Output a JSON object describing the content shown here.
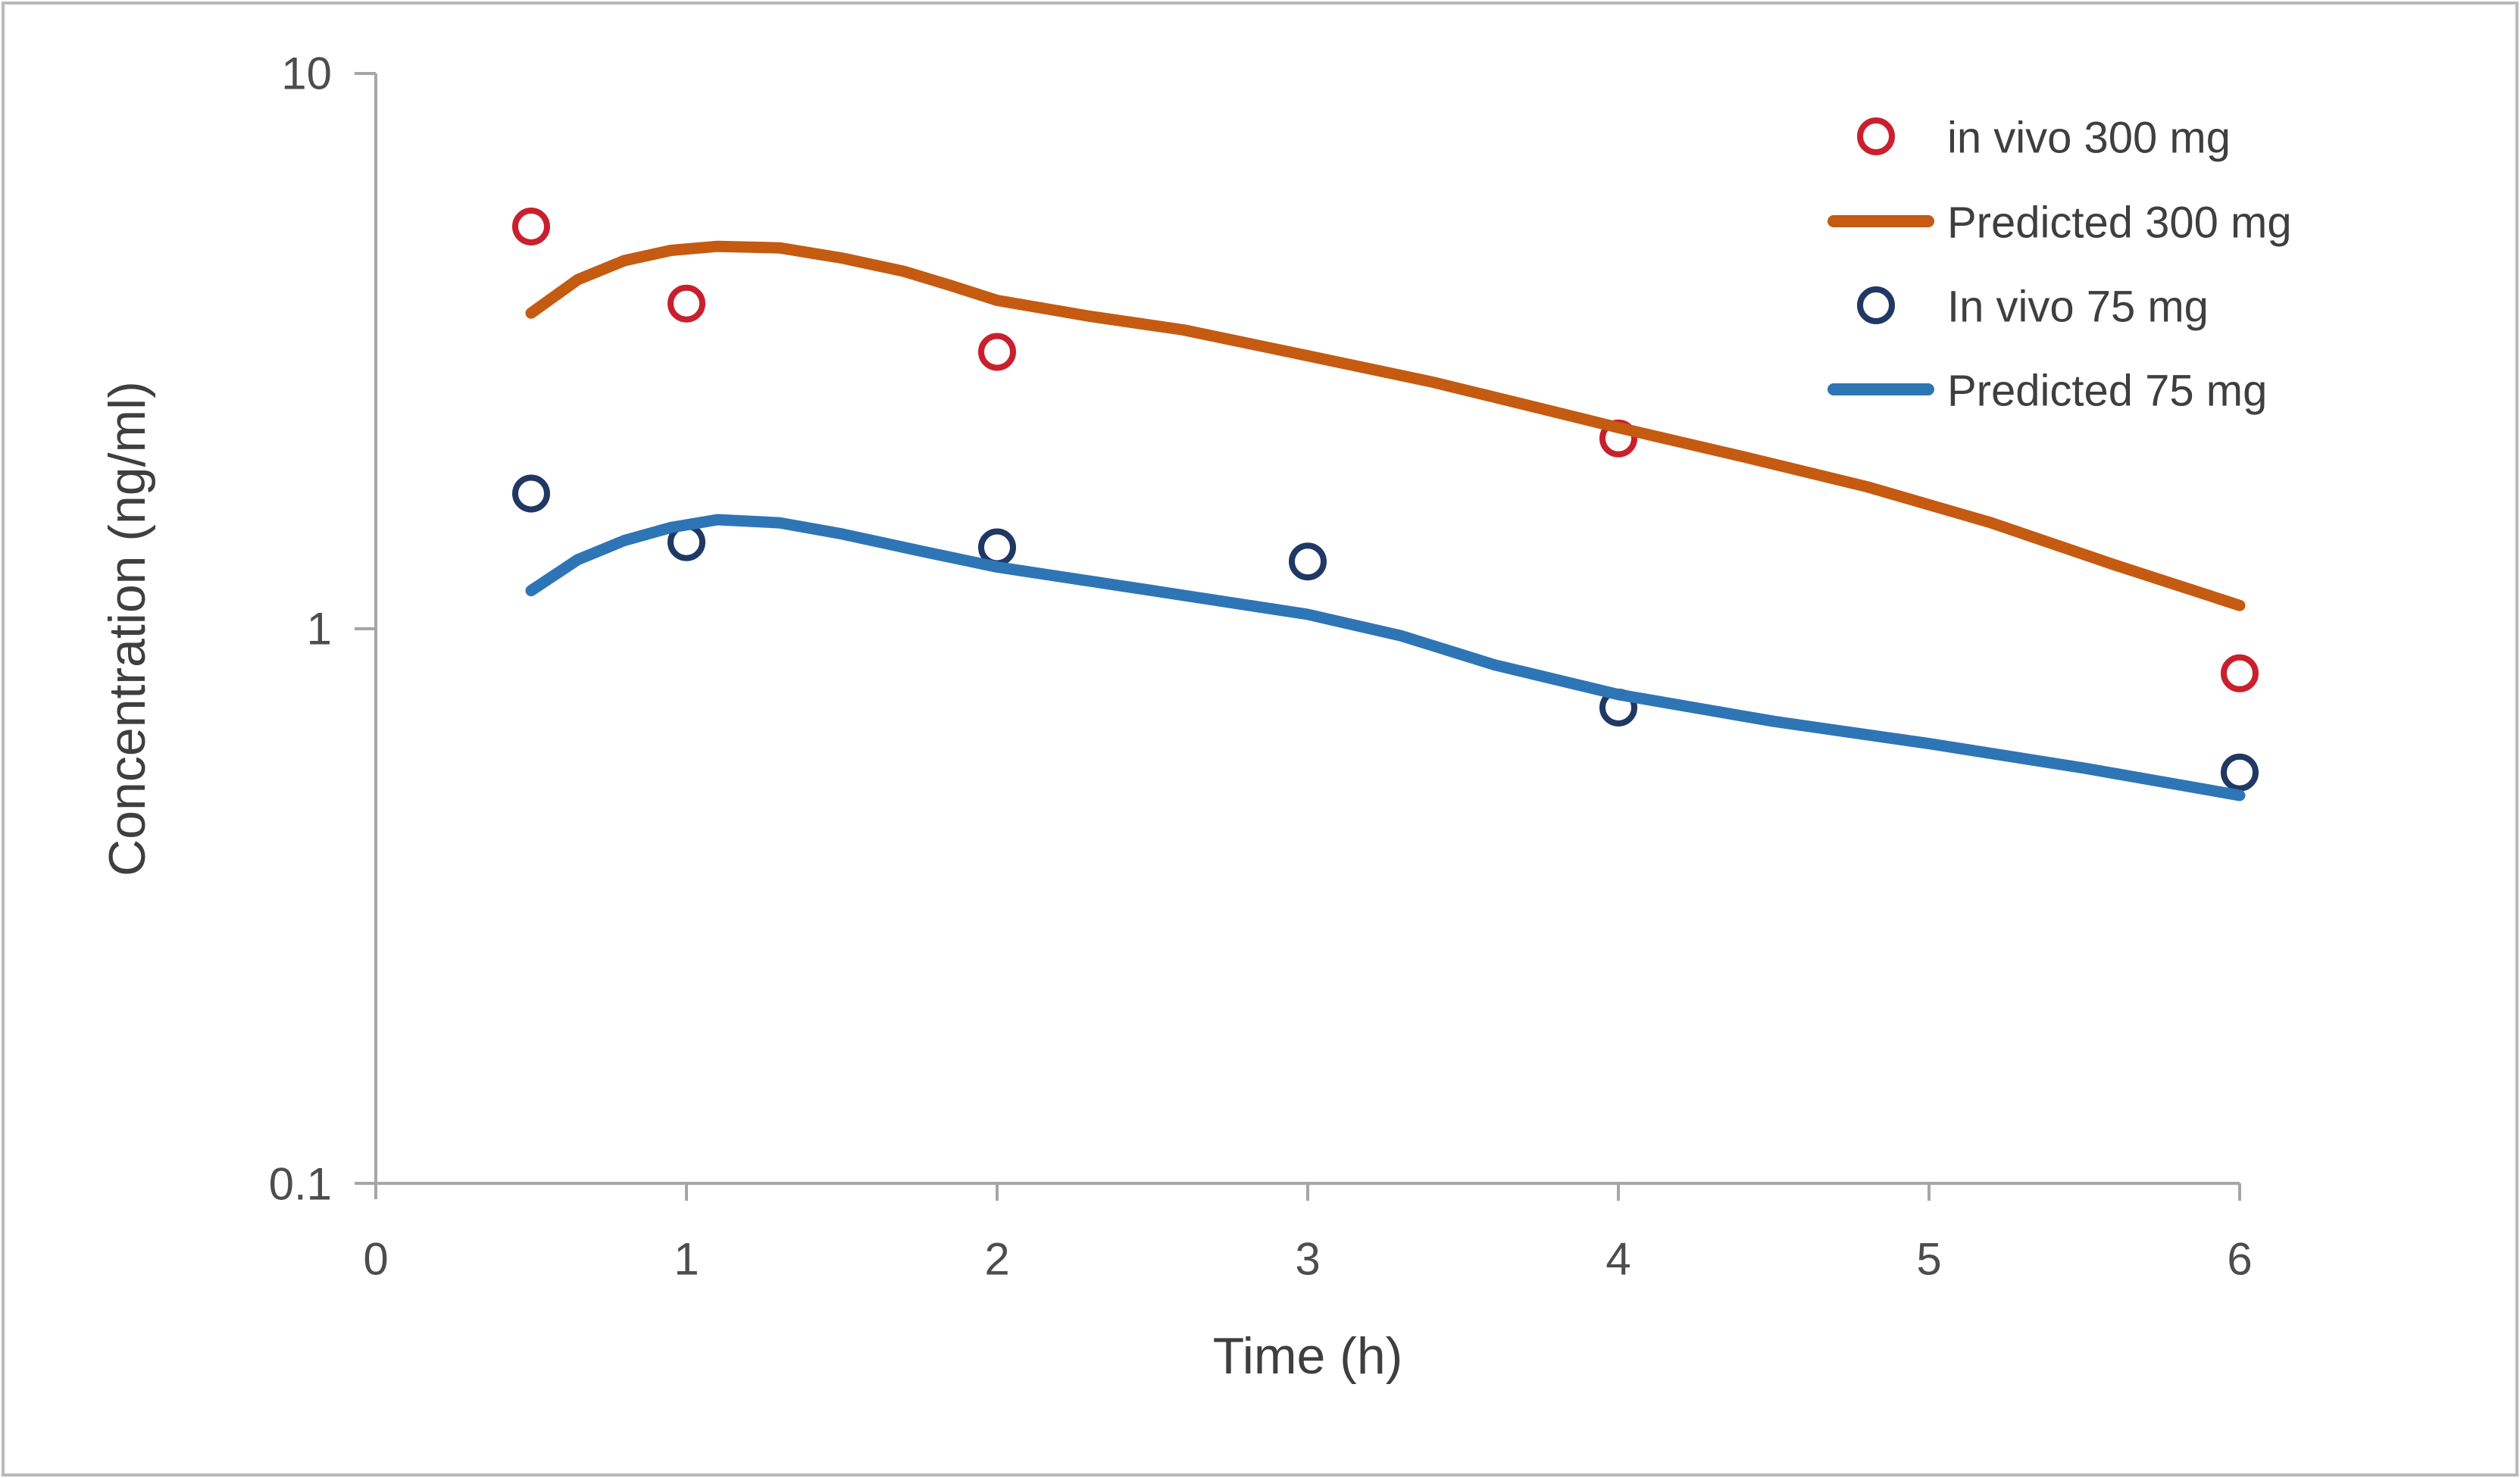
{
  "figure": {
    "background": "#ffffff",
    "border_color": "#b9b9b9",
    "axis_line_color": "#a6a6a6",
    "text_color": "#3f3f3f"
  },
  "axes": {
    "x": {
      "label": "Time (h)",
      "ticks": [
        "0",
        "1",
        "2",
        "3",
        "4",
        "5",
        "6"
      ],
      "tick_values": [
        0,
        1,
        2,
        3,
        4,
        5,
        6
      ],
      "range": [
        0,
        6
      ],
      "scale": "linear"
    },
    "y": {
      "label": "Concentration (ng/ml)",
      "ticks": [
        "10",
        "1",
        "0.1"
      ],
      "tick_values": [
        10,
        1,
        0.1
      ],
      "range": [
        0.1,
        10
      ],
      "scale": "log"
    }
  },
  "legend": {
    "position": "upper right",
    "items": [
      {
        "label": "in vivo 300 mg",
        "marker": "open-circle",
        "color": "#c9202e"
      },
      {
        "label": "Predicted 300 mg",
        "marker": "line",
        "color": "#c55a11"
      },
      {
        "label": "In vivo 75 mg",
        "marker": "open-circle",
        "color": "#1f3864"
      },
      {
        "label": "Predicted 75 mg",
        "marker": "line",
        "color": "#2e75b6"
      }
    ]
  },
  "chart_data": {
    "type": "scatter",
    "title": "",
    "xlabel": "Time (h)",
    "ylabel": "Concentration (ng/ml)",
    "x_range": [
      0,
      6
    ],
    "y_range": [
      0.1,
      10
    ],
    "y_scale": "log",
    "grid": false,
    "legend_position": "upper right",
    "series": [
      {
        "name": "in vivo 300 mg",
        "kind": "scatter",
        "marker": "open-circle",
        "color": "#c9202e",
        "points": [
          [
            0.5,
            5.3
          ],
          [
            1,
            3.85
          ],
          [
            2,
            3.15
          ],
          [
            4,
            2.2
          ],
          [
            6,
            0.83
          ]
        ]
      },
      {
        "name": "Predicted 300 mg",
        "kind": "line",
        "color": "#c55a11",
        "points": [
          [
            0.5,
            3.7
          ],
          [
            0.65,
            4.25
          ],
          [
            0.8,
            4.6
          ],
          [
            0.95,
            4.8
          ],
          [
            1.1,
            4.88
          ],
          [
            1.3,
            4.85
          ],
          [
            1.5,
            4.65
          ],
          [
            1.7,
            4.4
          ],
          [
            1.85,
            4.15
          ],
          [
            2.0,
            3.9
          ],
          [
            2.3,
            3.65
          ],
          [
            2.6,
            3.45
          ],
          [
            3.0,
            3.1
          ],
          [
            3.4,
            2.78
          ],
          [
            3.7,
            2.53
          ],
          [
            4.0,
            2.3
          ],
          [
            4.4,
            2.04
          ],
          [
            4.8,
            1.8
          ],
          [
            5.2,
            1.55
          ],
          [
            5.6,
            1.3
          ],
          [
            6.0,
            1.1
          ]
        ]
      },
      {
        "name": "In vivo 75 mg",
        "kind": "scatter",
        "marker": "open-circle",
        "color": "#1f3864",
        "points": [
          [
            0.5,
            1.75
          ],
          [
            1,
            1.43
          ],
          [
            2,
            1.4
          ],
          [
            3,
            1.32
          ],
          [
            4,
            0.72
          ],
          [
            6,
            0.55
          ]
        ]
      },
      {
        "name": "Predicted 75 mg",
        "kind": "line",
        "color": "#2e75b6",
        "points": [
          [
            0.5,
            1.17
          ],
          [
            0.65,
            1.33
          ],
          [
            0.8,
            1.44
          ],
          [
            0.95,
            1.52
          ],
          [
            1.1,
            1.57
          ],
          [
            1.3,
            1.55
          ],
          [
            1.5,
            1.48
          ],
          [
            1.75,
            1.38
          ],
          [
            2.0,
            1.29
          ],
          [
            2.5,
            1.17
          ],
          [
            3.0,
            1.06
          ],
          [
            3.3,
            0.97
          ],
          [
            3.6,
            0.86
          ],
          [
            4.0,
            0.76
          ],
          [
            4.5,
            0.68
          ],
          [
            5.0,
            0.62
          ],
          [
            5.5,
            0.56
          ],
          [
            6.0,
            0.5
          ]
        ]
      }
    ]
  }
}
